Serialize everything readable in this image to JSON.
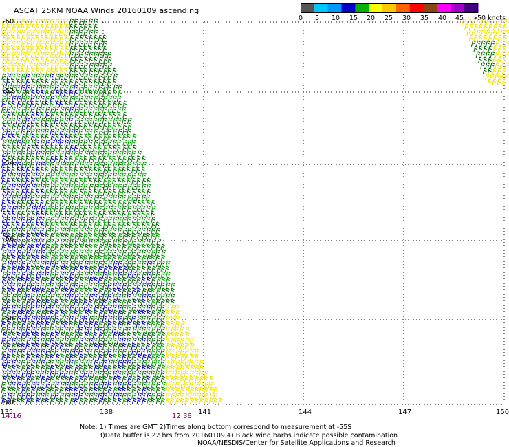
{
  "title": "ASCAT 25KM NOAA Winds 20160109 ascending",
  "colorbar": {
    "colors": [
      "#555555",
      "#00c8ff",
      "#0096ff",
      "#0000c8",
      "#00b400",
      "#ffff00",
      "#ffc800",
      "#ff6400",
      "#ff0000",
      "#8b4513",
      "#ff00ff",
      "#a000c8",
      "#400080"
    ],
    "labels": [
      "0",
      "5",
      "10",
      "15",
      "20",
      "25",
      "30",
      "35",
      "40",
      "45",
      ">50 knots"
    ]
  },
  "lat_labels": [
    "-50",
    "-52",
    "-54",
    "-56",
    "-58",
    "-60"
  ],
  "lon_labels": [
    "135",
    "138",
    "141",
    "144",
    "147",
    "150"
  ],
  "times": [
    {
      "text": "14:16"
    },
    {
      "text": "12:38"
    }
  ],
  "notes": [
    "Note: 1) Times are GMT 2)Times along bottom correspond to measurement at -55S",
    "3)Data buffer is 22 hrs from 20160109 4) Black wind barbs indicate possible contamination",
    "NOAA/NESDIS/Center for Satellite Applications and Research"
  ],
  "barb_colors": {
    "yellow": "#f0e000",
    "green": "#00a000",
    "darkgreen": "#006400",
    "blue": "#0000b0"
  }
}
